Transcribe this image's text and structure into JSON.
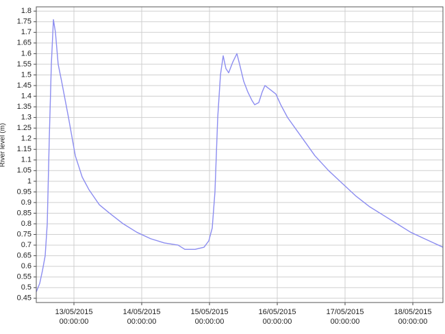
{
  "chart_data": {
    "type": "line",
    "y_label": "River level (m)",
    "color": "#8b8cf0",
    "grid": true,
    "x": [
      "2015-05-12T10:40:00",
      "2015-05-12T11:53:00",
      "2015-05-12T12:51:00",
      "2015-05-12T13:49:00",
      "2015-05-12T14:33:00",
      "2015-05-12T15:16:00",
      "2015-05-12T16:00:00",
      "2015-05-12T16:44:00",
      "2015-05-12T17:27:00",
      "2015-05-12T18:25:00",
      "2015-05-12T19:38:00",
      "2015-05-12T22:04:00",
      "2015-05-13T00:29:00",
      "2015-05-13T02:55:00",
      "2015-05-13T05:20:00",
      "2015-05-13T08:58:00",
      "2015-05-13T12:36:00",
      "2015-05-13T17:27:00",
      "2015-05-13T22:18:00",
      "2015-05-14T03:09:00",
      "2015-05-14T08:00:00",
      "2015-05-14T12:51:00",
      "2015-05-14T15:16:00",
      "2015-05-14T18:55:00",
      "2015-05-14T22:04:00",
      "2015-05-14T23:45:00",
      "2015-05-15T00:58:00",
      "2015-05-15T01:56:00",
      "2015-05-15T02:55:00",
      "2015-05-15T03:53:00",
      "2015-05-15T04:51:00",
      "2015-05-15T05:49:00",
      "2015-05-15T06:47:00",
      "2015-05-15T08:14:00",
      "2015-05-15T09:42:00",
      "2015-05-15T10:40:00",
      "2015-05-15T12:07:00",
      "2015-05-15T13:34:00",
      "2015-05-15T15:02:00",
      "2015-05-15T16:00:00",
      "2015-05-15T17:27:00",
      "2015-05-15T18:40:00",
      "2015-05-15T19:38:00",
      "2015-05-15T21:35:00",
      "2015-05-15T23:31:00",
      "2015-05-16T01:13:00",
      "2015-05-16T03:38:00",
      "2015-05-16T08:29:00",
      "2015-05-16T13:20:00",
      "2015-05-16T18:11:00",
      "2015-05-16T23:02:00",
      "2015-05-17T03:53:00",
      "2015-05-17T08:44:00",
      "2015-05-17T13:35:00",
      "2015-05-17T18:25:00",
      "2015-05-17T23:16:00",
      "2015-05-18T04:07:00",
      "2015-05-18T10:40:00"
    ],
    "values": [
      0.48,
      0.52,
      0.58,
      0.65,
      0.8,
      1.2,
      1.55,
      1.76,
      1.7,
      1.55,
      1.47,
      1.3,
      1.12,
      1.02,
      0.96,
      0.89,
      0.85,
      0.8,
      0.76,
      0.73,
      0.71,
      0.7,
      0.68,
      0.68,
      0.69,
      0.72,
      0.78,
      0.95,
      1.3,
      1.5,
      1.59,
      1.53,
      1.51,
      1.56,
      1.6,
      1.55,
      1.47,
      1.42,
      1.38,
      1.36,
      1.37,
      1.42,
      1.45,
      1.43,
      1.41,
      1.36,
      1.3,
      1.21,
      1.12,
      1.05,
      0.99,
      0.93,
      0.88,
      0.84,
      0.8,
      0.76,
      0.73,
      0.69
    ],
    "xlim": [
      "2015-05-12T10:40:00",
      "2015-05-18T10:40:00"
    ],
    "xticks": [
      {
        "value": "2015-05-13T00:00:00",
        "label": "13/05/2015 00:00:00"
      },
      {
        "value": "2015-05-14T00:00:00",
        "label": "14/05/2015 00:00:00"
      },
      {
        "value": "2015-05-15T00:00:00",
        "label": "15/05/2015 00:00:00"
      },
      {
        "value": "2015-05-16T00:00:00",
        "label": "16/05/2015 00:00:00"
      },
      {
        "value": "2015-05-17T00:00:00",
        "label": "17/05/2015 00:00:00"
      },
      {
        "value": "2015-05-18T00:00:00",
        "label": "18/05/2015 00:00:00"
      }
    ],
    "ylim": [
      0.43,
      1.82
    ],
    "yticks": [
      0.45,
      0.5,
      0.55,
      0.6,
      0.65,
      0.7,
      0.75,
      0.8,
      0.85,
      0.9,
      0.95,
      1,
      1.05,
      1.1,
      1.15,
      1.2,
      1.25,
      1.3,
      1.35,
      1.4,
      1.45,
      1.5,
      1.55,
      1.6,
      1.65,
      1.7,
      1.75,
      1.8
    ]
  }
}
